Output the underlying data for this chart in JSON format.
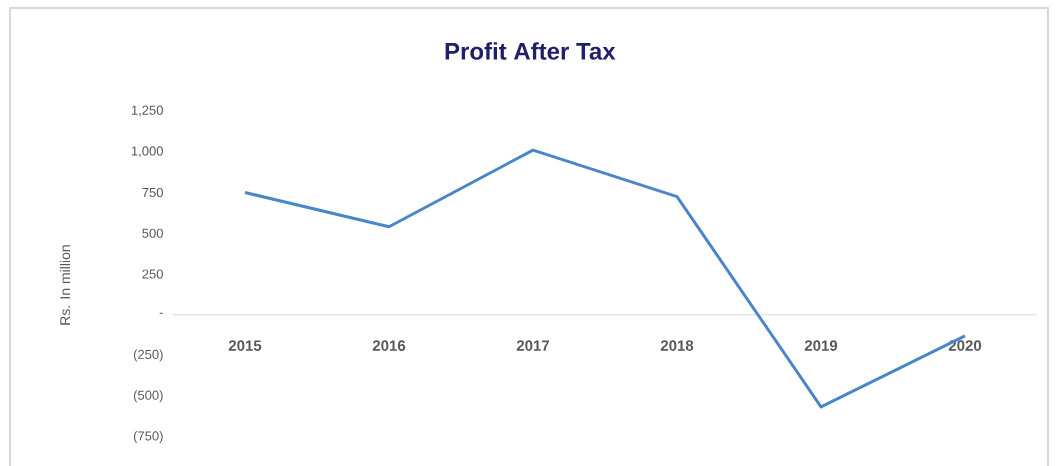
{
  "chart_data": {
    "type": "line",
    "title": "Profit After Tax",
    "ylabel": "Rs. In million",
    "categories": [
      "2015",
      "2016",
      "2017",
      "2018",
      "2019",
      "2020"
    ],
    "series": [
      {
        "color": "#4a86c8",
        "values": [
          750,
          540,
          1010,
          725,
          -565,
          -130
        ]
      }
    ],
    "ylim": [
      -750,
      1250
    ],
    "yticks": [
      {
        "value": -750,
        "label": "(750)"
      },
      {
        "value": -500,
        "label": "(500)"
      },
      {
        "value": -250,
        "label": "(250)"
      },
      {
        "value": 0,
        "label": "-"
      },
      {
        "value": 250,
        "label": "250"
      },
      {
        "value": 500,
        "label": "500"
      },
      {
        "value": 750,
        "label": "750"
      },
      {
        "value": 1000,
        "label": "1,000"
      },
      {
        "value": 1250,
        "label": "1,250"
      }
    ]
  }
}
